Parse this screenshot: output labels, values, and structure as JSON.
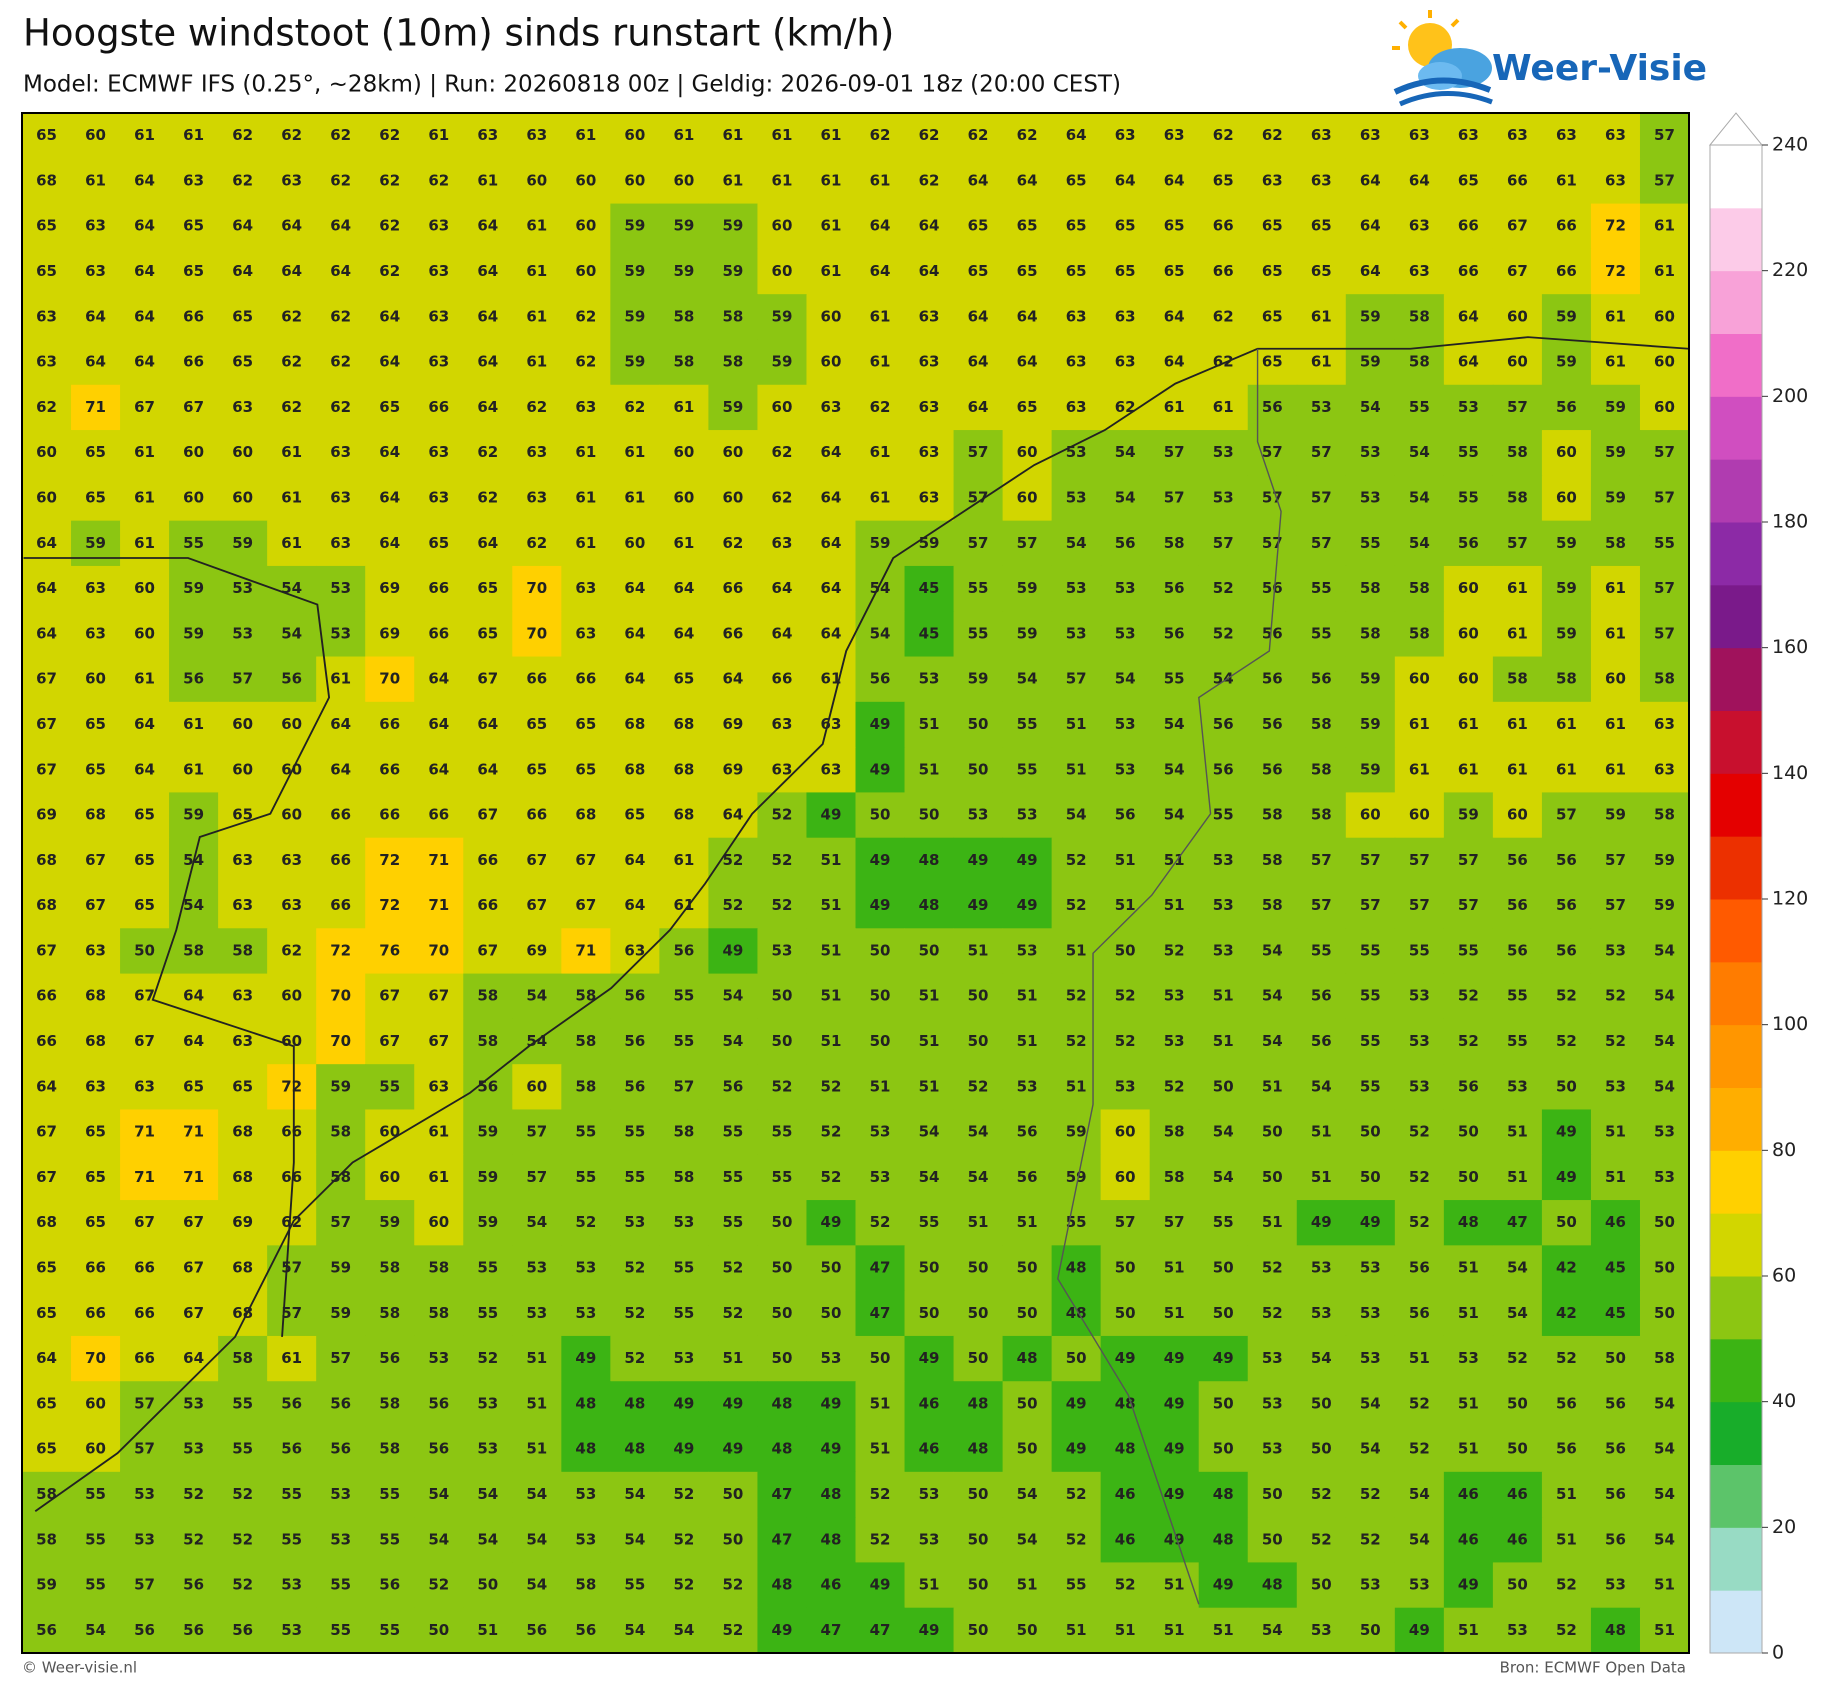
{
  "header": {
    "title": "Hoogste windstoot (10m) sinds runstart (km/h)",
    "subtitle": "Model: ECMWF IFS (0.25°, ~28km)  |  Run: 20260818 00z  |  Geldig: 2026-09-01 18z (20:00 CEST)",
    "logo": "Weer-Visie"
  },
  "footer": {
    "left": "© Weer-visie.nl",
    "right": "Bron: ECMWF Open Data"
  },
  "colorbar": {
    "ticks": [
      0,
      20,
      40,
      60,
      80,
      100,
      120,
      140,
      160,
      180,
      200,
      220,
      240
    ],
    "colors": [
      "#cde6f7",
      "#98dbc4",
      "#5cc46a",
      "#18ad2a",
      "#3cb414",
      "#8cc612",
      "#d2d600",
      "#ffd000",
      "#ffae00",
      "#ff9600",
      "#ff7c00",
      "#ff5a00",
      "#ec3000",
      "#e40000",
      "#c8102e",
      "#a0125c",
      "#7a1a8a",
      "#8c2aa6",
      "#b03cb0",
      "#d04ec0",
      "#f06ec8",
      "#f8a2d8",
      "#fccbe8",
      "#ffffff"
    ]
  },
  "grid": {
    "rows": [
      [
        65,
        60,
        61,
        61,
        62,
        62,
        62,
        62,
        61,
        63,
        63,
        61,
        60,
        61,
        61,
        61,
        61,
        62,
        62,
        62,
        62,
        64,
        63,
        63,
        62,
        62,
        63,
        63,
        63,
        63,
        63,
        63,
        63,
        57
      ],
      [
        68,
        61,
        64,
        63,
        62,
        63,
        62,
        62,
        62,
        61,
        60,
        60,
        60,
        60,
        61,
        61,
        61,
        61,
        62,
        64,
        64,
        65,
        64,
        64,
        65,
        63,
        63,
        64,
        64,
        65,
        66,
        61,
        63,
        57
      ],
      [
        65,
        63,
        64,
        65,
        64,
        64,
        64,
        62,
        63,
        64,
        61,
        60,
        59,
        59,
        59,
        60,
        61,
        64,
        64,
        65,
        65,
        65,
        65,
        65,
        66,
        65,
        65,
        64,
        63,
        66,
        67,
        66,
        72,
        61
      ],
      [
        65,
        63,
        64,
        65,
        64,
        64,
        64,
        62,
        63,
        64,
        61,
        60,
        59,
        59,
        59,
        60,
        61,
        64,
        64,
        65,
        65,
        65,
        65,
        65,
        66,
        65,
        65,
        64,
        63,
        66,
        67,
        66,
        72,
        61
      ],
      [
        63,
        64,
        64,
        66,
        65,
        62,
        62,
        64,
        63,
        64,
        61,
        62,
        59,
        58,
        58,
        59,
        60,
        61,
        63,
        64,
        64,
        63,
        63,
        64,
        62,
        65,
        61,
        59,
        58,
        64,
        60,
        59,
        61,
        60
      ],
      [
        63,
        64,
        64,
        66,
        65,
        62,
        62,
        64,
        63,
        64,
        61,
        62,
        59,
        58,
        58,
        59,
        60,
        61,
        63,
        64,
        64,
        63,
        63,
        64,
        62,
        65,
        61,
        59,
        58,
        64,
        60,
        59,
        61,
        60
      ],
      [
        62,
        71,
        67,
        67,
        63,
        62,
        62,
        65,
        66,
        64,
        62,
        63,
        62,
        61,
        59,
        60,
        63,
        62,
        63,
        64,
        65,
        63,
        62,
        61,
        61,
        56,
        53,
        54,
        55,
        53,
        57,
        56,
        59,
        60
      ],
      [
        60,
        65,
        61,
        60,
        60,
        61,
        63,
        64,
        63,
        62,
        63,
        61,
        61,
        60,
        60,
        62,
        64,
        61,
        63,
        57,
        60,
        53,
        54,
        57,
        53,
        57,
        57,
        53,
        54,
        55,
        58,
        60,
        59,
        57
      ],
      [
        60,
        65,
        61,
        60,
        60,
        61,
        63,
        64,
        63,
        62,
        63,
        61,
        61,
        60,
        60,
        62,
        64,
        61,
        63,
        57,
        60,
        53,
        54,
        57,
        53,
        57,
        57,
        53,
        54,
        55,
        58,
        60,
        59,
        57
      ],
      [
        64,
        59,
        61,
        55,
        59,
        61,
        63,
        64,
        65,
        64,
        62,
        61,
        60,
        61,
        62,
        63,
        64,
        59,
        59,
        57,
        57,
        54,
        56,
        58,
        57,
        57,
        57,
        55,
        54,
        56,
        57,
        59,
        58,
        55
      ],
      [
        64,
        63,
        60,
        59,
        53,
        54,
        53,
        69,
        66,
        65,
        70,
        63,
        64,
        64,
        66,
        64,
        64,
        54,
        45,
        55,
        59,
        53,
        53,
        56,
        52,
        56,
        55,
        58,
        58,
        60,
        61,
        59,
        61,
        57
      ],
      [
        64,
        63,
        60,
        59,
        53,
        54,
        53,
        69,
        66,
        65,
        70,
        63,
        64,
        64,
        66,
        64,
        64,
        54,
        45,
        55,
        59,
        53,
        53,
        56,
        52,
        56,
        55,
        58,
        58,
        60,
        61,
        59,
        61,
        57
      ],
      [
        67,
        60,
        61,
        56,
        57,
        56,
        61,
        70,
        64,
        67,
        66,
        66,
        64,
        65,
        64,
        66,
        61,
        56,
        53,
        59,
        54,
        57,
        54,
        55,
        54,
        56,
        56,
        59,
        60,
        60,
        58,
        58,
        60,
        58
      ],
      [
        67,
        65,
        64,
        61,
        60,
        60,
        64,
        66,
        64,
        64,
        65,
        65,
        68,
        68,
        69,
        63,
        63,
        49,
        51,
        50,
        55,
        51,
        53,
        54,
        56,
        56,
        58,
        59,
        61,
        61,
        61,
        61,
        61,
        63
      ],
      [
        67,
        65,
        64,
        61,
        60,
        60,
        64,
        66,
        64,
        64,
        65,
        65,
        68,
        68,
        69,
        63,
        63,
        49,
        51,
        50,
        55,
        51,
        53,
        54,
        56,
        56,
        58,
        59,
        61,
        61,
        61,
        61,
        61,
        63
      ],
      [
        69,
        68,
        65,
        59,
        65,
        60,
        66,
        66,
        66,
        67,
        66,
        68,
        65,
        68,
        64,
        52,
        49,
        50,
        50,
        53,
        53,
        54,
        56,
        54,
        55,
        58,
        58,
        60,
        60,
        59,
        60,
        57,
        59,
        58
      ],
      [
        68,
        67,
        65,
        54,
        63,
        63,
        66,
        72,
        71,
        66,
        67,
        67,
        64,
        61,
        52,
        52,
        51,
        49,
        48,
        49,
        49,
        52,
        51,
        51,
        53,
        58,
        57,
        57,
        57,
        57,
        56,
        56,
        57,
        59
      ],
      [
        68,
        67,
        65,
        54,
        63,
        63,
        66,
        72,
        71,
        66,
        67,
        67,
        64,
        61,
        52,
        52,
        51,
        49,
        48,
        49,
        49,
        52,
        51,
        51,
        53,
        58,
        57,
        57,
        57,
        57,
        56,
        56,
        57,
        59
      ],
      [
        67,
        63,
        50,
        58,
        58,
        62,
        72,
        76,
        70,
        67,
        69,
        71,
        63,
        56,
        49,
        53,
        51,
        50,
        50,
        51,
        53,
        51,
        50,
        52,
        53,
        54,
        55,
        55,
        55,
        55,
        56,
        56,
        53,
        54
      ],
      [
        66,
        68,
        67,
        64,
        63,
        60,
        70,
        67,
        67,
        58,
        54,
        58,
        56,
        55,
        54,
        50,
        51,
        50,
        51,
        50,
        51,
        52,
        52,
        53,
        51,
        54,
        56,
        55,
        53,
        52,
        55,
        52,
        52,
        54
      ],
      [
        66,
        68,
        67,
        64,
        63,
        60,
        70,
        67,
        67,
        58,
        54,
        58,
        56,
        55,
        54,
        50,
        51,
        50,
        51,
        50,
        51,
        52,
        52,
        53,
        51,
        54,
        56,
        55,
        53,
        52,
        55,
        52,
        52,
        54
      ],
      [
        64,
        63,
        63,
        65,
        65,
        72,
        59,
        55,
        63,
        56,
        60,
        58,
        56,
        57,
        56,
        52,
        52,
        51,
        51,
        52,
        53,
        51,
        53,
        52,
        50,
        51,
        54,
        55,
        53,
        56,
        53,
        50,
        53,
        54
      ],
      [
        67,
        65,
        71,
        71,
        68,
        66,
        58,
        60,
        61,
        59,
        57,
        55,
        55,
        58,
        55,
        55,
        52,
        53,
        54,
        54,
        56,
        59,
        60,
        58,
        54,
        50,
        51,
        50,
        52,
        50,
        51,
        49,
        51,
        53
      ],
      [
        67,
        65,
        71,
        71,
        68,
        66,
        58,
        60,
        61,
        59,
        57,
        55,
        55,
        58,
        55,
        55,
        52,
        53,
        54,
        54,
        56,
        59,
        60,
        58,
        54,
        50,
        51,
        50,
        52,
        50,
        51,
        49,
        51,
        53
      ],
      [
        68,
        65,
        67,
        67,
        69,
        62,
        57,
        59,
        60,
        59,
        54,
        52,
        53,
        53,
        55,
        50,
        49,
        52,
        55,
        51,
        51,
        55,
        57,
        57,
        55,
        51,
        49,
        49,
        52,
        48,
        47,
        50,
        46,
        50
      ],
      [
        65,
        66,
        66,
        67,
        68,
        57,
        59,
        58,
        58,
        55,
        53,
        53,
        52,
        55,
        52,
        50,
        50,
        47,
        50,
        50,
        50,
        48,
        50,
        51,
        50,
        52,
        53,
        53,
        56,
        51,
        54,
        42,
        45,
        50
      ],
      [
        65,
        66,
        66,
        67,
        68,
        57,
        59,
        58,
        58,
        55,
        53,
        53,
        52,
        55,
        52,
        50,
        50,
        47,
        50,
        50,
        50,
        48,
        50,
        51,
        50,
        52,
        53,
        53,
        56,
        51,
        54,
        42,
        45,
        50
      ],
      [
        64,
        70,
        66,
        64,
        58,
        61,
        57,
        56,
        53,
        52,
        51,
        49,
        52,
        53,
        51,
        50,
        53,
        50,
        49,
        50,
        48,
        50,
        49,
        49,
        49,
        53,
        54,
        53,
        51,
        53,
        52,
        52,
        50,
        58
      ],
      [
        65,
        60,
        57,
        53,
        55,
        56,
        56,
        58,
        56,
        53,
        51,
        48,
        48,
        49,
        49,
        48,
        49,
        51,
        46,
        48,
        50,
        49,
        48,
        49,
        50,
        53,
        50,
        54,
        52,
        51,
        50,
        56,
        56,
        54
      ],
      [
        65,
        60,
        57,
        53,
        55,
        56,
        56,
        58,
        56,
        53,
        51,
        48,
        48,
        49,
        49,
        48,
        49,
        51,
        46,
        48,
        50,
        49,
        48,
        49,
        50,
        53,
        50,
        54,
        52,
        51,
        50,
        56,
        56,
        54
      ],
      [
        58,
        55,
        53,
        52,
        52,
        55,
        53,
        55,
        54,
        54,
        54,
        53,
        54,
        52,
        50,
        47,
        48,
        52,
        53,
        50,
        54,
        52,
        46,
        49,
        48,
        50,
        52,
        52,
        54,
        46,
        46,
        51,
        56,
        54
      ],
      [
        58,
        55,
        53,
        52,
        52,
        55,
        53,
        55,
        54,
        54,
        54,
        53,
        54,
        52,
        50,
        47,
        48,
        52,
        53,
        50,
        54,
        52,
        46,
        49,
        48,
        50,
        52,
        52,
        54,
        46,
        46,
        51,
        56,
        54
      ],
      [
        59,
        55,
        57,
        56,
        52,
        53,
        55,
        56,
        52,
        50,
        54,
        58,
        55,
        52,
        52,
        48,
        46,
        49,
        51,
        50,
        51,
        55,
        52,
        51,
        49,
        48,
        50,
        53,
        53,
        49,
        50,
        52,
        53,
        51
      ],
      [
        56,
        54,
        56,
        56,
        56,
        53,
        55,
        55,
        50,
        51,
        56,
        56,
        54,
        54,
        52,
        49,
        47,
        47,
        49,
        50,
        50,
        51,
        51,
        51,
        51,
        54,
        53,
        50,
        49,
        51,
        53,
        52,
        48,
        51
      ]
    ]
  }
}
